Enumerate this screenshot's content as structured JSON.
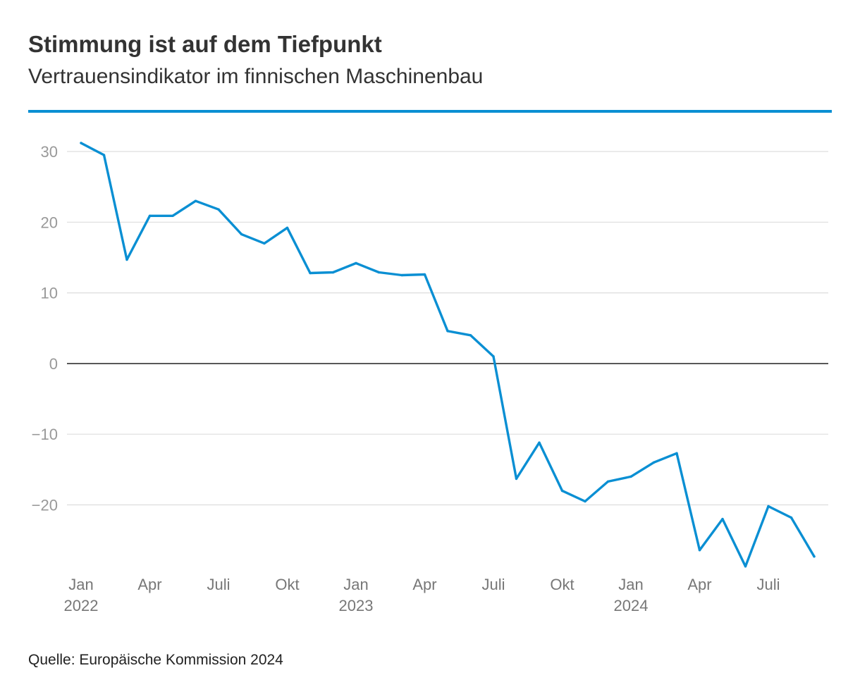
{
  "header": {
    "title": "Stimmung ist auf dem Tiefpunkt",
    "subtitle": "Vertrauensindikator im finnischen Maschinenbau"
  },
  "footer": {
    "source": "Quelle: Europäische Kommission 2024"
  },
  "colors": {
    "accent": "#0a8fd3",
    "line": "#0a8fd3",
    "grid": "#dddddd",
    "zero_line": "#333333"
  },
  "chart_data": {
    "type": "line",
    "title": "Stimmung ist auf dem Tiefpunkt",
    "subtitle": "Vertrauensindikator im finnischen Maschinenbau",
    "xlabel": "",
    "ylabel": "",
    "ylim": [
      -29,
      32
    ],
    "yticks": [
      30,
      20,
      10,
      0,
      -10,
      -20
    ],
    "ytick_labels": [
      "30",
      "20",
      "10",
      "0",
      "−10",
      "−20"
    ],
    "grid": true,
    "legend": "none",
    "xticks": [
      {
        "month": "2022-01",
        "label": "Jan",
        "year": "2022"
      },
      {
        "month": "2022-04",
        "label": "Apr",
        "year": ""
      },
      {
        "month": "2022-07",
        "label": "Juli",
        "year": ""
      },
      {
        "month": "2022-10",
        "label": "Okt",
        "year": ""
      },
      {
        "month": "2023-01",
        "label": "Jan",
        "year": "2023"
      },
      {
        "month": "2023-04",
        "label": "Apr",
        "year": ""
      },
      {
        "month": "2023-07",
        "label": "Juli",
        "year": ""
      },
      {
        "month": "2023-10",
        "label": "Okt",
        "year": ""
      },
      {
        "month": "2024-01",
        "label": "Jan",
        "year": "2024"
      },
      {
        "month": "2024-04",
        "label": "Apr",
        "year": ""
      },
      {
        "month": "2024-07",
        "label": "Juli",
        "year": ""
      }
    ],
    "series": [
      {
        "x": [
          "2022-01",
          "2022-02",
          "2022-03",
          "2022-04",
          "2022-05",
          "2022-06",
          "2022-07",
          "2022-08",
          "2022-09",
          "2022-10",
          "2022-11",
          "2022-12",
          "2023-01",
          "2023-02",
          "2023-03",
          "2023-04",
          "2023-05",
          "2023-06",
          "2023-07",
          "2023-08",
          "2023-09",
          "2023-10",
          "2023-11",
          "2023-12",
          "2024-01",
          "2024-02",
          "2024-03",
          "2024-04",
          "2024-05",
          "2024-06",
          "2024-07",
          "2024-08",
          "2024-09"
        ],
        "values": [
          31.2,
          29.5,
          14.7,
          20.9,
          20.9,
          23.0,
          21.8,
          18.3,
          17.0,
          19.2,
          12.8,
          12.9,
          14.2,
          12.9,
          12.5,
          12.6,
          4.6,
          4.0,
          1.0,
          -16.3,
          -11.2,
          -18.0,
          -19.5,
          -16.7,
          -16.0,
          -14.0,
          -12.7,
          -26.4,
          -22.0,
          -28.7,
          -20.2,
          -21.8,
          -27.3
        ]
      }
    ]
  }
}
